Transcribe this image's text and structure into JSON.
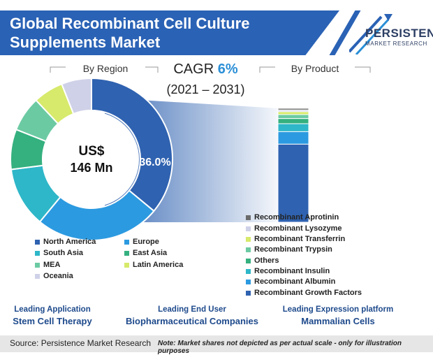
{
  "title_line1": "Global Recombinant Cell Culture",
  "title_line2": "Supplements Market",
  "logo": {
    "name": "PERSISTENCE",
    "sub": "MARKET RESEARCH"
  },
  "by_region_label": "By Region",
  "by_product_label": "By Product",
  "cagr_prefix": "CAGR",
  "cagr_value": "6%",
  "period": "(2021 – 2031)",
  "donut_center_line1": "US$",
  "donut_center_line2": "146 Mn",
  "donut_highlight_label": "36.0%",
  "colors": {
    "accent": "#2a62b5",
    "cagr": "#2a8fd6",
    "leading": "#1e4a8c"
  },
  "chart_data": [
    {
      "type": "pie",
      "variant": "donut",
      "categories": [
        "North America",
        "Europe",
        "South Asia",
        "East Asia",
        "MEA",
        "Latin America",
        "Oceania"
      ],
      "values": [
        36.0,
        25.0,
        12.0,
        8.0,
        7.0,
        6.0,
        6.0
      ],
      "colors": [
        "#2f62b0",
        "#2c9ae0",
        "#2eb7c8",
        "#35b07f",
        "#6ccaa3",
        "#d7ea6b",
        "#cfd1e8"
      ],
      "data_labels": [
        "36.0%"
      ]
    },
    {
      "type": "bar",
      "variant": "stacked",
      "categories": [
        "Recombinant Aprotinin",
        "Recombinant Lysozyme",
        "Recombinant Transferrin",
        "Recombinant Trypsin",
        "Others",
        "Recombinant Insulin",
        "Recombinant Albumin",
        "Recombinant Growth Factors"
      ],
      "values": [
        1.5,
        1.5,
        2.5,
        3.5,
        4.5,
        7.0,
        11.0,
        68.5
      ],
      "colors": [
        "#6b6b6b",
        "#cfd1e8",
        "#d7ea6b",
        "#6ccaa3",
        "#35b07f",
        "#2eb7c8",
        "#2c9ae0",
        "#2f62b0"
      ]
    }
  ],
  "region_legend": [
    {
      "label": "North America",
      "color": "#2f62b0"
    },
    {
      "label": "Europe",
      "color": "#2c9ae0"
    },
    {
      "label": "South Asia",
      "color": "#2eb7c8"
    },
    {
      "label": "East Asia",
      "color": "#35b07f"
    },
    {
      "label": "MEA",
      "color": "#6ccaa3"
    },
    {
      "label": "Latin America",
      "color": "#d7ea6b"
    },
    {
      "label": "Oceania",
      "color": "#cfd1e8"
    }
  ],
  "product_legend": [
    {
      "label": "Recombinant Aprotinin",
      "color": "#6b6b6b"
    },
    {
      "label": "Recombinant Lysozyme",
      "color": "#cfd1e8"
    },
    {
      "label": "Recombinant Transferrin",
      "color": "#d7ea6b"
    },
    {
      "label": "Recombinant Trypsin",
      "color": "#6ccaa3"
    },
    {
      "label": "Others",
      "color": "#35b07f"
    },
    {
      "label": "Recombinant Insulin",
      "color": "#2eb7c8"
    },
    {
      "label": "Recombinant Albumin",
      "color": "#2c9ae0"
    },
    {
      "label": "Recombinant Growth Factors",
      "color": "#2f62b0"
    }
  ],
  "leading": [
    {
      "label": "Leading Application",
      "value": "Stem Cell Therapy"
    },
    {
      "label": "Leading End User",
      "value": "Biopharmaceutical Companies"
    },
    {
      "label": "Leading Expression platform",
      "value": "Mammalian Cells"
    }
  ],
  "source": "Source: Persistence Market Research",
  "note": "Note: Market shares not depicted as per actual scale - only for illustration purposes"
}
